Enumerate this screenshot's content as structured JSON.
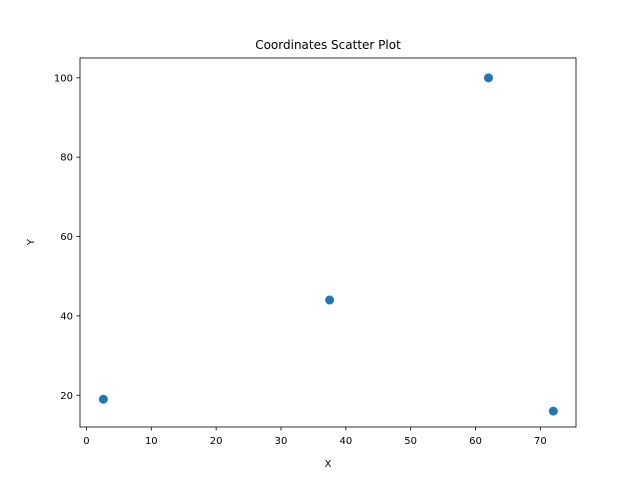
{
  "chart_data": {
    "type": "scatter",
    "title": "Coordinates Scatter Plot",
    "xlabel": "X",
    "ylabel": "Y",
    "xlim": [
      -1,
      75.5
    ],
    "ylim": [
      12,
      105
    ],
    "xticks": [
      0,
      10,
      20,
      30,
      40,
      50,
      60,
      70
    ],
    "yticks": [
      20,
      40,
      60,
      80,
      100
    ],
    "grid": false,
    "series": [
      {
        "color": "#1f77b4",
        "points": [
          {
            "x": 2.6,
            "y": 19
          },
          {
            "x": 37.5,
            "y": 44
          },
          {
            "x": 62,
            "y": 100
          },
          {
            "x": 72,
            "y": 16
          }
        ]
      }
    ]
  }
}
